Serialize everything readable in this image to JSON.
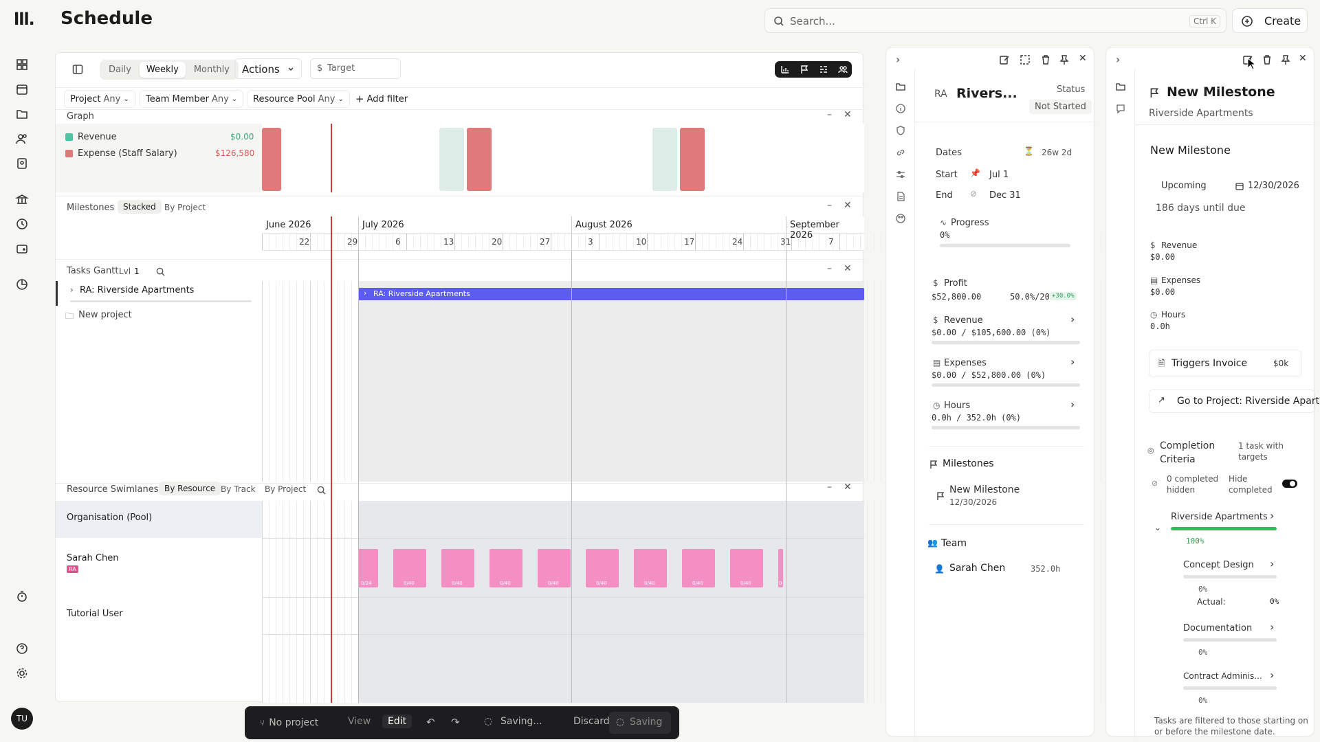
{
  "app": {
    "logo": "lll.",
    "title": "Schedule",
    "avatar": "TU"
  },
  "search": {
    "placeholder": "Search...",
    "shortcut": "Ctrl K"
  },
  "create_label": "Create",
  "view": {
    "modes": [
      "Daily",
      "Weekly",
      "Monthly"
    ],
    "active": "Weekly",
    "actions_label": "Actions",
    "target_label": "Target"
  },
  "filters": [
    {
      "name": "Project",
      "value": "Any"
    },
    {
      "name": "Team Member",
      "value": "Any"
    },
    {
      "name": "Resource Pool",
      "value": "Any"
    }
  ],
  "add_filter_label": "Add filter",
  "graph": {
    "title": "Graph",
    "legend": [
      {
        "name": "Revenue",
        "value": "$0.00",
        "color": "#4fc3a1"
      },
      {
        "name": "Expense (Staff Salary)",
        "value": "$126,580",
        "color": "#e07a7a"
      }
    ]
  },
  "milestones_section": {
    "title": "Milestones",
    "tabs": [
      "Stacked",
      "By Project"
    ],
    "active": "Stacked"
  },
  "timeline": {
    "months": [
      "June 2026",
      "July 2026",
      "August 2026",
      "September 2026"
    ],
    "weeks": [
      "22",
      "29",
      "6",
      "13",
      "20",
      "27",
      "3",
      "10",
      "17",
      "24",
      "31",
      "7"
    ]
  },
  "tasks": {
    "title": "Tasks Gantt",
    "level_label": "Lvl",
    "level": "1",
    "project_row": "RA: Riverside Apartments",
    "bar_label": "RA: Riverside Apartments",
    "new_project": "New project"
  },
  "swimlanes": {
    "title": "Resource Swimlanes",
    "tabs": [
      "By Resource",
      "By Track",
      "By Project"
    ],
    "active": "By Resource",
    "rows": [
      {
        "name": "Organisation (Pool)"
      },
      {
        "name": "Sarah Chen",
        "badge": "RA"
      },
      {
        "name": "Tutorial User"
      }
    ],
    "blocks": [
      "0/24",
      "0/40",
      "0/40",
      "0/40",
      "0/40",
      "0/40",
      "0/40",
      "0/40",
      "0/40",
      "0"
    ]
  },
  "toolbar": {
    "project": "No project",
    "view": "View",
    "edit": "Edit",
    "saving": "Saving...",
    "discard": "Discard",
    "saving2": "Saving"
  },
  "project_panel": {
    "code": "RA",
    "name": "Rivers...",
    "status_label": "Status",
    "status": "Not Started",
    "dates_label": "Dates",
    "duration": "26w 2d",
    "start_label": "Start",
    "start": "Jul 1",
    "end_label": "End",
    "end": "Dec 31",
    "progress_label": "Progress",
    "progress": "0%",
    "profit_label": "Profit",
    "profit": "$52,800.00",
    "profit_pct": "50.0%/20.0%",
    "profit_delta": "+30.0%",
    "revenue_label": "Revenue",
    "revenue": "$0.00 / $105,600.00 (0%)",
    "expenses_label": "Expenses",
    "expenses": "$0.00 / $52,800.00 (0%)",
    "hours_label": "Hours",
    "hours": "0.0h / 352.0h (0%)",
    "milestones_label": "Milestones",
    "milestone_name": "New Milestone",
    "milestone_date": "12/30/2026",
    "team_label": "Team",
    "member": "Sarah Chen",
    "member_hours": "352.0h"
  },
  "milestone_panel": {
    "title": "New Milestone",
    "subtitle": "Riverside Apartments",
    "name_value": "New Milestone",
    "status": "Upcoming",
    "due_date": "12/30/2026",
    "due_text": "186 days until due",
    "revenue_label": "Revenue",
    "revenue": "$0.00",
    "expenses_label": "Expenses",
    "expenses": "$0.00",
    "hours_label": "Hours",
    "hours": "0.0h",
    "invoice_label": "Triggers Invoice",
    "invoice_value": "$0k",
    "goto_label": "Go to Project: Riverside Apart",
    "criteria_label": "Completion Criteria",
    "criteria_count": "1 task with targets",
    "completed_hidden": "0 completed hidden",
    "hide_completed": "Hide completed",
    "group": "Riverside Apartments",
    "group_pct": "100%",
    "tasks": [
      {
        "name": "Concept Design",
        "pct": "0%",
        "actual_label": "Actual:",
        "actual": "0%"
      },
      {
        "name": "Documentation",
        "pct": "0%"
      },
      {
        "name": "Contract Adminis...",
        "pct": "0%"
      }
    ],
    "footnote": "Tasks are filtered to those starting on or before the milestone date."
  }
}
